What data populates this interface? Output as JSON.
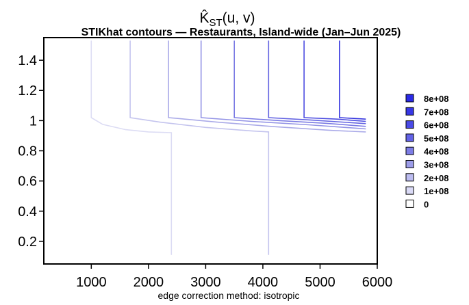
{
  "chart_data": {
    "type": "line",
    "title": "K̂ST(u, v)",
    "title_main": "K̂",
    "title_sub": "ST",
    "title_args": "(u, v)",
    "subtitle": "STIKhat contours — Restaurants, Island-wide (Jan–Jun 2025)",
    "footer": "edge correction method: isotropic",
    "x_ticks": [
      "1000",
      "2000",
      "3000",
      "4000",
      "5000",
      "6000"
    ],
    "y_ticks": [
      "0.2",
      "0.4",
      "0.6",
      "0.8",
      "1",
      "1.2",
      "1.4"
    ],
    "xlim": [
      170,
      6000
    ],
    "ylim": [
      0.05,
      1.55
    ],
    "legend_position": "right",
    "legend": [
      {
        "label": "8e+08",
        "color": "#2a2ae6"
      },
      {
        "label": "7e+08",
        "color": "#3737e6"
      },
      {
        "label": "6e+08",
        "color": "#4a4ae6"
      },
      {
        "label": "5e+08",
        "color": "#6262e6"
      },
      {
        "label": "4e+08",
        "color": "#7d7de6"
      },
      {
        "label": "3e+08",
        "color": "#9c9ce8"
      },
      {
        "label": "2e+08",
        "color": "#bcbcf0"
      },
      {
        "label": "1e+08",
        "color": "#dadaf6"
      },
      {
        "label": "0",
        "color": "#ffffff"
      }
    ],
    "series": [
      {
        "level": "1e+08",
        "color": "#dcdcf4",
        "points": [
          [
            1000,
            1.53
          ],
          [
            1000,
            1.02
          ],
          [
            1200,
            0.975
          ],
          [
            1600,
            0.94
          ],
          [
            2000,
            0.925
          ],
          [
            2400,
            0.92
          ],
          [
            2400,
            0.11
          ]
        ]
      },
      {
        "level": "2e+08",
        "color": "#c4c4ee",
        "points": [
          [
            1680,
            1.53
          ],
          [
            1680,
            1.02
          ],
          [
            2200,
            0.99
          ],
          [
            3000,
            0.955
          ],
          [
            3800,
            0.932
          ],
          [
            4100,
            0.925
          ],
          [
            4100,
            0.11
          ]
        ]
      },
      {
        "level": "3e+08",
        "color": "#aaaae8",
        "points": [
          [
            2350,
            1.53
          ],
          [
            2350,
            1.02
          ],
          [
            3200,
            0.99
          ],
          [
            4200,
            0.96
          ],
          [
            5200,
            0.935
          ],
          [
            5800,
            0.925
          ]
        ]
      },
      {
        "level": "4e+08",
        "color": "#9494e6",
        "points": [
          [
            2920,
            1.53
          ],
          [
            2920,
            1.02
          ],
          [
            3800,
            0.995
          ],
          [
            4800,
            0.972
          ],
          [
            5800,
            0.945
          ]
        ]
      },
      {
        "level": "5e+08",
        "color": "#7c7ce4",
        "points": [
          [
            3500,
            1.53
          ],
          [
            3500,
            1.02
          ],
          [
            4300,
            1.0
          ],
          [
            5100,
            0.982
          ],
          [
            5800,
            0.962
          ]
        ]
      },
      {
        "level": "6e+08",
        "color": "#6464e2",
        "points": [
          [
            4100,
            1.53
          ],
          [
            4100,
            1.02
          ],
          [
            4800,
            1.005
          ],
          [
            5800,
            0.98
          ]
        ]
      },
      {
        "level": "7e+08",
        "color": "#4c4ce0",
        "points": [
          [
            4720,
            1.53
          ],
          [
            4720,
            1.02
          ],
          [
            5300,
            1.01
          ],
          [
            5800,
            0.995
          ]
        ]
      },
      {
        "level": "8e+08",
        "color": "#3434de",
        "points": [
          [
            5340,
            1.53
          ],
          [
            5340,
            1.02
          ],
          [
            5800,
            1.01
          ]
        ]
      }
    ]
  }
}
